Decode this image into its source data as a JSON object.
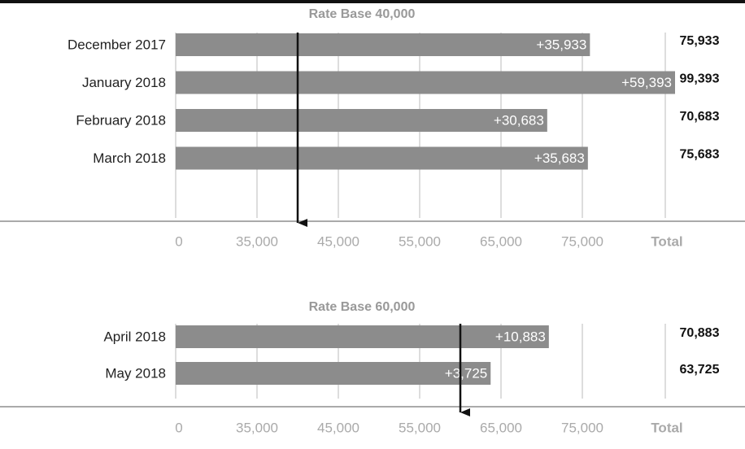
{
  "chart_data": [
    {
      "type": "bar",
      "title": "Rate Base 40,000",
      "rate_base": 40000,
      "categories": [
        "December 2017",
        "January 2018",
        "February 2018",
        "March 2018"
      ],
      "values": [
        75933,
        99393,
        70683,
        75683
      ],
      "value_labels": [
        "75,933",
        "99,393",
        "70,683",
        "75,683"
      ],
      "increments": [
        35933,
        59393,
        30683,
        35683
      ],
      "increment_labels": [
        "+35,933",
        "+59,393",
        "+30,683",
        "+35,683"
      ],
      "color": "#8c8c8c",
      "xlim": [
        0,
        75000
      ],
      "xticks": [
        0,
        {
          "value": 35000,
          "label": "35,000"
        },
        {
          "value": 45000,
          "label": "45,000"
        },
        {
          "value": 55000,
          "label": "55,000"
        },
        {
          "value": 65000,
          "label": "65,000"
        },
        {
          "value": 75000,
          "label": "75,000"
        }
      ],
      "total_label": "Total",
      "grid": true
    },
    {
      "type": "bar",
      "title": "Rate Base 60,000",
      "rate_base": 60000,
      "categories": [
        "April 2018",
        "May 2018"
      ],
      "values": [
        70883,
        63725
      ],
      "value_labels": [
        "70,883",
        "63,725"
      ],
      "increments": [
        10883,
        3725
      ],
      "increment_labels": [
        "+10,883",
        "+3,725"
      ],
      "color": "#8c8c8c",
      "xlim": [
        0,
        75000
      ],
      "xticks": [
        0,
        {
          "value": 35000,
          "label": "35,000"
        },
        {
          "value": 45000,
          "label": "45,000"
        },
        {
          "value": 55000,
          "label": "55,000"
        },
        {
          "value": 65000,
          "label": "65,000"
        },
        {
          "value": 75000,
          "label": "75,000"
        }
      ],
      "total_label": "Total",
      "grid": true
    }
  ]
}
